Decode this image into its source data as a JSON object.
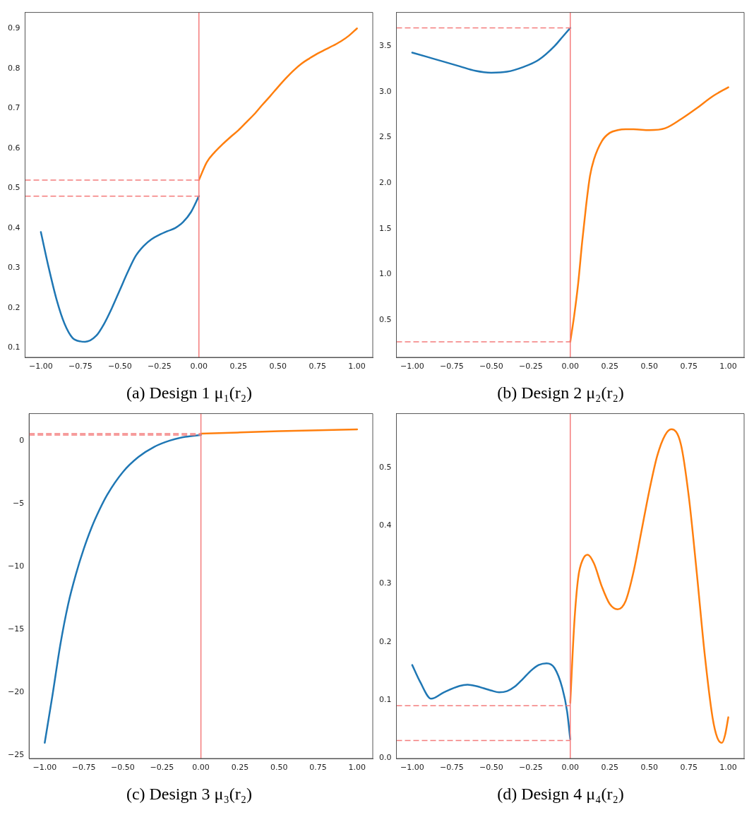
{
  "chart_data": [
    {
      "type": "line",
      "title": "(a) Design 1 μ₁(r₂)",
      "xlim": [
        -1.1,
        1.1
      ],
      "ylim": [
        0.076,
        0.94
      ],
      "xticks": [
        {
          "value": -1,
          "label": "−1.00"
        },
        {
          "value": -0.75,
          "label": "−0.75"
        },
        {
          "value": -0.5,
          "label": "−0.50"
        },
        {
          "value": -0.25,
          "label": "−0.25"
        },
        {
          "value": 0,
          "label": "0.00"
        },
        {
          "value": 0.25,
          "label": "0.25"
        },
        {
          "value": 0.5,
          "label": "0.50"
        },
        {
          "value": 0.75,
          "label": "0.75"
        },
        {
          "value": 1,
          "label": "1.00"
        }
      ],
      "yticks": [
        0.1,
        0.2,
        0.3,
        0.4,
        0.5,
        0.6,
        0.7,
        0.8,
        0.9
      ],
      "grid": false,
      "legend": false,
      "marker": "none",
      "line_style": "solid",
      "series": [
        {
          "color": "#1f77b4",
          "x": [
            -1,
            -0.95,
            -0.9,
            -0.85,
            -0.8,
            -0.75,
            -0.72,
            -0.65,
            -0.6,
            -0.55,
            -0.5,
            -0.45,
            -0.4,
            -0.35,
            -0.3,
            -0.25,
            -0.2,
            -0.15,
            -0.1,
            -0.05,
            0
          ],
          "values": [
            0.39,
            0.3,
            0.22,
            0.16,
            0.125,
            0.116,
            0.115,
            0.13,
            0.16,
            0.2,
            0.245,
            0.29,
            0.33,
            0.355,
            0.372,
            0.383,
            0.392,
            0.4,
            0.415,
            0.44,
            0.48
          ]
        },
        {
          "color": "#ff7f0e",
          "x": [
            0,
            0.05,
            0.1,
            0.15,
            0.2,
            0.25,
            0.3,
            0.35,
            0.4,
            0.45,
            0.5,
            0.55,
            0.6,
            0.65,
            0.7,
            0.75,
            0.8,
            0.85,
            0.9,
            0.95,
            1
          ],
          "values": [
            0.52,
            0.565,
            0.59,
            0.61,
            0.628,
            0.645,
            0.665,
            0.685,
            0.708,
            0.73,
            0.753,
            0.775,
            0.795,
            0.812,
            0.825,
            0.837,
            0.847,
            0.857,
            0.868,
            0.882,
            0.9
          ]
        }
      ],
      "ref_lines": [
        {
          "axis": "x",
          "value": 0,
          "color": "#f47c7c",
          "line_style": "solid"
        },
        {
          "axis": "y",
          "value": 0.52,
          "color": "#f47c7c",
          "line_style": "dashed"
        },
        {
          "axis": "y",
          "value": 0.48,
          "color": "#f47c7c",
          "line_style": "dashed"
        }
      ]
    },
    {
      "type": "line",
      "title": "(b) Design 2 μ₂(r₂)",
      "xlim": [
        -1.1,
        1.1
      ],
      "ylim": [
        0.09,
        3.87
      ],
      "xticks": [
        {
          "value": -1,
          "label": "−1.00"
        },
        {
          "value": -0.75,
          "label": "−0.75"
        },
        {
          "value": -0.5,
          "label": "−0.50"
        },
        {
          "value": -0.25,
          "label": "−0.25"
        },
        {
          "value": 0,
          "label": "0.00"
        },
        {
          "value": 0.25,
          "label": "0.25"
        },
        {
          "value": 0.5,
          "label": "0.50"
        },
        {
          "value": 0.75,
          "label": "0.75"
        },
        {
          "value": 1,
          "label": "1.00"
        }
      ],
      "yticks": [
        0.5,
        {
          "value": 1,
          "label": "1.0"
        },
        1.5,
        {
          "value": 2,
          "label": "2.0"
        },
        2.5,
        {
          "value": 3,
          "label": "3.0"
        },
        3.5
      ],
      "grid": false,
      "legend": false,
      "marker": "none",
      "line_style": "solid",
      "series": [
        {
          "color": "#1f77b4",
          "x": [
            -1,
            -0.9,
            -0.8,
            -0.7,
            -0.6,
            -0.5,
            -0.4,
            -0.3,
            -0.2,
            -0.1,
            -0.05,
            0
          ],
          "values": [
            3.43,
            3.38,
            3.33,
            3.28,
            3.23,
            3.21,
            3.22,
            3.27,
            3.35,
            3.5,
            3.6,
            3.7
          ]
        },
        {
          "color": "#ff7f0e",
          "x": [
            0,
            0.025,
            0.05,
            0.075,
            0.1,
            0.125,
            0.15,
            0.2,
            0.25,
            0.3,
            0.35,
            0.4,
            0.5,
            0.6,
            0.7,
            0.8,
            0.9,
            1
          ],
          "values": [
            0.26,
            0.55,
            0.9,
            1.35,
            1.75,
            2.08,
            2.26,
            2.46,
            2.55,
            2.58,
            2.59,
            2.59,
            2.58,
            2.6,
            2.7,
            2.82,
            2.95,
            3.05
          ]
        }
      ],
      "ref_lines": [
        {
          "axis": "x",
          "value": 0,
          "color": "#f47c7c",
          "line_style": "solid"
        },
        {
          "axis": "y",
          "value": 3.7,
          "color": "#f47c7c",
          "line_style": "dashed"
        },
        {
          "axis": "y",
          "value": 0.26,
          "color": "#f47c7c",
          "line_style": "dashed"
        }
      ]
    },
    {
      "type": "line",
      "title": "(c) Design 3 μ₃(r₂)",
      "xlim": [
        -1.1,
        1.1
      ],
      "ylim": [
        -25.25,
        2.15
      ],
      "xticks": [
        {
          "value": -1,
          "label": "−1.00"
        },
        {
          "value": -0.75,
          "label": "−0.75"
        },
        {
          "value": -0.5,
          "label": "−0.50"
        },
        {
          "value": -0.25,
          "label": "−0.25"
        },
        {
          "value": 0,
          "label": "0.00"
        },
        {
          "value": 0.25,
          "label": "0.25"
        },
        {
          "value": 0.5,
          "label": "0.50"
        },
        {
          "value": 0.75,
          "label": "0.75"
        },
        {
          "value": 1,
          "label": "1.00"
        }
      ],
      "yticks": [
        {
          "value": -25,
          "label": "−25"
        },
        {
          "value": -20,
          "label": "−20"
        },
        {
          "value": -15,
          "label": "−15"
        },
        {
          "value": -10,
          "label": "−10"
        },
        {
          "value": -5,
          "label": "−5"
        },
        0
      ],
      "grid": false,
      "legend": false,
      "marker": "none",
      "line_style": "solid",
      "series": [
        {
          "color": "#1f77b4",
          "x": [
            -1,
            -0.95,
            -0.9,
            -0.85,
            -0.8,
            -0.75,
            -0.7,
            -0.65,
            -0.6,
            -0.5,
            -0.4,
            -0.3,
            -0.2,
            -0.1,
            0
          ],
          "values": [
            -24,
            -20.2,
            -16.2,
            -13,
            -10.6,
            -8.6,
            -6.9,
            -5.5,
            -4.3,
            -2.5,
            -1.3,
            -0.5,
            0,
            0.3,
            0.45
          ]
        },
        {
          "color": "#ff7f0e",
          "x": [
            0,
            0.25,
            0.5,
            0.75,
            1
          ],
          "values": [
            0.55,
            0.65,
            0.75,
            0.83,
            0.9
          ]
        }
      ],
      "ref_lines": [
        {
          "axis": "x",
          "value": 0,
          "color": "#f47c7c",
          "line_style": "solid"
        },
        {
          "axis": "y",
          "value": 0.55,
          "color": "#f47c7c",
          "line_style": "dashed"
        },
        {
          "axis": "y",
          "value": 0.45,
          "color": "#f47c7c",
          "line_style": "dashed"
        }
      ]
    },
    {
      "type": "line",
      "title": "(d) Design 4 μ₄(r₂)",
      "xlim": [
        -1.1,
        1.1
      ],
      "ylim": [
        -0.001,
        0.593
      ],
      "xticks": [
        {
          "value": -1,
          "label": "−1.00"
        },
        {
          "value": -0.75,
          "label": "−0.75"
        },
        {
          "value": -0.5,
          "label": "−0.50"
        },
        {
          "value": -0.25,
          "label": "−0.25"
        },
        {
          "value": 0,
          "label": "0.00"
        },
        {
          "value": 0.25,
          "label": "0.25"
        },
        {
          "value": 0.5,
          "label": "0.50"
        },
        {
          "value": 0.75,
          "label": "0.75"
        },
        {
          "value": 1,
          "label": "1.00"
        }
      ],
      "yticks": [
        {
          "value": 0,
          "label": "0.0"
        },
        0.1,
        0.2,
        0.3,
        0.4,
        0.5
      ],
      "grid": false,
      "legend": false,
      "marker": "none",
      "line_style": "solid",
      "series": [
        {
          "color": "#1f77b4",
          "x": [
            -1,
            -0.95,
            -0.88,
            -0.8,
            -0.7,
            -0.65,
            -0.6,
            -0.5,
            -0.45,
            -0.4,
            -0.35,
            -0.3,
            -0.25,
            -0.2,
            -0.15,
            -0.1,
            -0.05,
            -0.02,
            0
          ],
          "values": [
            0.16,
            0.131,
            0.102,
            0.113,
            0.124,
            0.126,
            0.124,
            0.116,
            0.113,
            0.115,
            0.123,
            0.136,
            0.15,
            0.16,
            0.163,
            0.155,
            0.12,
            0.08,
            0.032
          ]
        },
        {
          "color": "#ff7f0e",
          "x": [
            0,
            0.025,
            0.05,
            0.08,
            0.11,
            0.15,
            0.2,
            0.25,
            0.3,
            0.35,
            0.4,
            0.45,
            0.5,
            0.55,
            0.6,
            0.64,
            0.7,
            0.75,
            0.8,
            0.85,
            0.9,
            0.93,
            0.96,
            0.98,
            1
          ],
          "values": [
            0.095,
            0.23,
            0.31,
            0.342,
            0.35,
            0.335,
            0.295,
            0.265,
            0.256,
            0.27,
            0.32,
            0.39,
            0.46,
            0.52,
            0.556,
            0.566,
            0.54,
            0.45,
            0.32,
            0.18,
            0.07,
            0.035,
            0.026,
            0.04,
            0.07
          ]
        }
      ],
      "ref_lines": [
        {
          "axis": "x",
          "value": 0,
          "color": "#f47c7c",
          "line_style": "solid"
        },
        {
          "axis": "y",
          "value": 0.09,
          "color": "#f47c7c",
          "line_style": "dashed"
        },
        {
          "axis": "y",
          "value": 0.03,
          "color": "#f47c7c",
          "line_style": "dashed"
        }
      ]
    }
  ]
}
